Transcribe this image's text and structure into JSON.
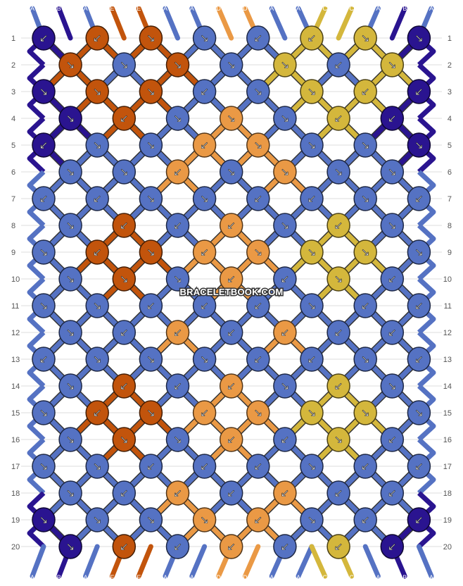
{
  "watermark": "BRACELETBOOK.COM",
  "colors": {
    "A": "#5572c3",
    "B": "#2a1490",
    "C": "#d4b73c",
    "D": "#ea9945",
    "E": "#c2540c"
  },
  "threads_top": [
    "A",
    "B",
    "A",
    "E",
    "E",
    "A",
    "A",
    "D",
    "D",
    "A",
    "A",
    "C",
    "C",
    "A",
    "B",
    "A"
  ],
  "threads_bottom": [
    "A",
    "B",
    "A",
    "E",
    "E",
    "A",
    "A",
    "D",
    "D",
    "A",
    "A",
    "C",
    "C",
    "A",
    "B",
    "A"
  ],
  "row_labels": [
    "1",
    "2",
    "3",
    "4",
    "5",
    "6",
    "7",
    "8",
    "9",
    "10",
    "11",
    "12",
    "13",
    "14",
    "15",
    "16",
    "17",
    "18",
    "19",
    "20"
  ],
  "knots": [
    "B:↙ E:↙ E:↘ A:↘ A:↙ C:↙ C:↘ B:↘",
    "E:↘ A:↘ E:↘ A:↘ C:↘ A:↙ C:↘",
    "B:↘ E:↘ E:↘ A:↙ A:↘ C:↘ C:↙ B:↙",
    "B:↘ E:↙ A:↘ D:↘ A:↘ C:↙ B:↙",
    "B:↙ A:↘ A:↘ D:↙ D:↘ A:↘ A:↘ B:↘",
    "A:↘ A:↘ D:↙ A:↘ D:↘ A:↘ A:↘",
    "A:↙ A:↙ A:↘ A:↘ A:↙ A:↙ A:↘ A:↙",
    "A:↘ E:↙ A:↙ D:↙ A:↘ C:↙ A:↘",
    "A:↘ E:↙ E:↘ D:↙ D:↘ C:↘ C:↘ A:↘",
    "A:↘ E:↘ A:↘ D:↙ A:↙ C:↘ A:↙",
    "A:↘ A:↘ A:↙ A:↙ A:↙ A:↘ A:↙ A:↙",
    "A:↘ A:↙ D:↙ A:↙ D:↙ A:↙ A:↙",
    "A:↙ A:↘ A:↘ A:↘ A:↙ A:↙ A:↘ A:↙",
    "A:↘ E:↙ A:↙ D:↙ A:↘ C:↙ A:↘",
    "A:↘ E:↙ E:↘ D:↙ D:↘ C:↘ C:↘ A:↘",
    "A:↘ E:↘ A:↘ D:↙ A:↙ C:↘ A:↙",
    "A:↘ A:↘ A:↙ A:↙ A:↙ A:↘ A:↙ A:↙",
    "A:↘ A:↙ D:↙ A:↙ D:↙ A:↙ A:↙",
    "B:↘ A:↘ A:↘ D:↘ D:↙ A:↘ A:↙ B:↙",
    "B:↘ E:↙ A:↙ D:↙ A:↙ C:↙ B:↙"
  ]
}
